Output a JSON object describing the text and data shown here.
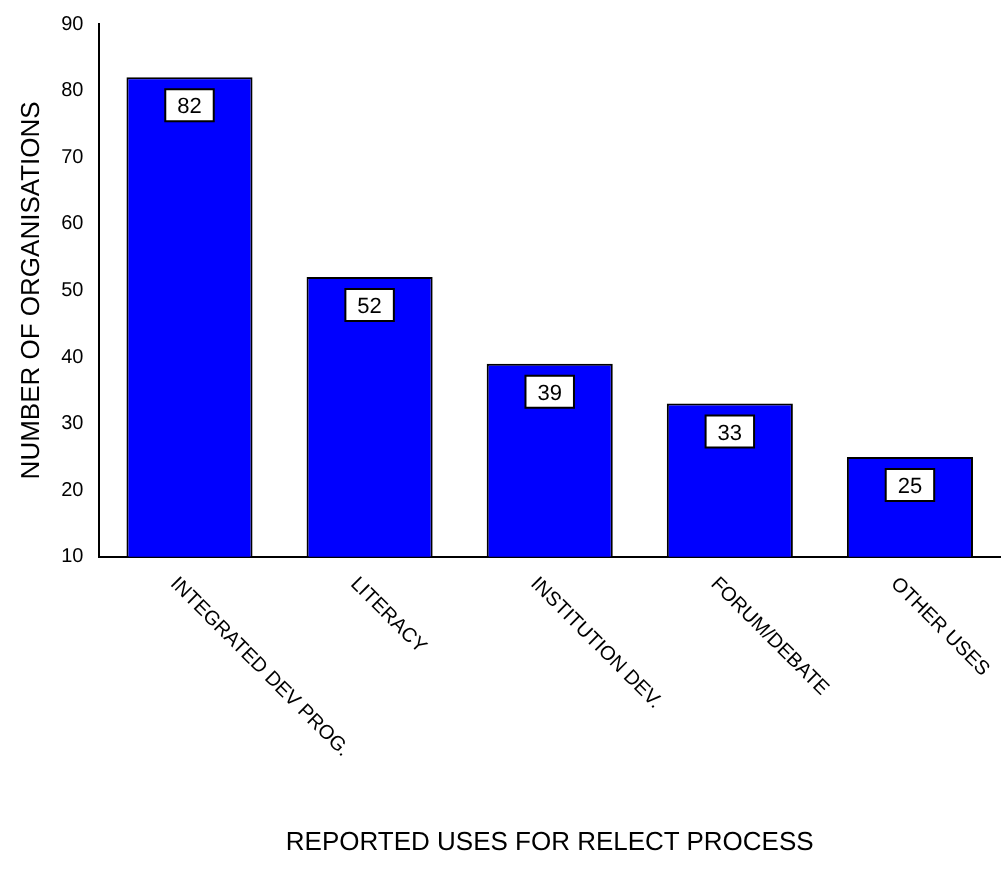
{
  "chart_data": {
    "type": "bar",
    "xlabel": "REPORTED USES FOR RELECT PROCESS",
    "ylabel": "NUMBER OF ORGANISATIONS",
    "categories": [
      "INTEGRATED DEV PROG.",
      "LITERACY",
      "INSTITUTION DEV.",
      "FORUM/DEBATE",
      "OTHER USES"
    ],
    "values": [
      82,
      52,
      39,
      33,
      25
    ],
    "color": "#0000ff",
    "ylim": [
      10,
      90
    ],
    "yticks": [
      10,
      20,
      30,
      40,
      50,
      60,
      70,
      80,
      90
    ],
    "grid": false,
    "legend": false,
    "data_labels": true
  }
}
